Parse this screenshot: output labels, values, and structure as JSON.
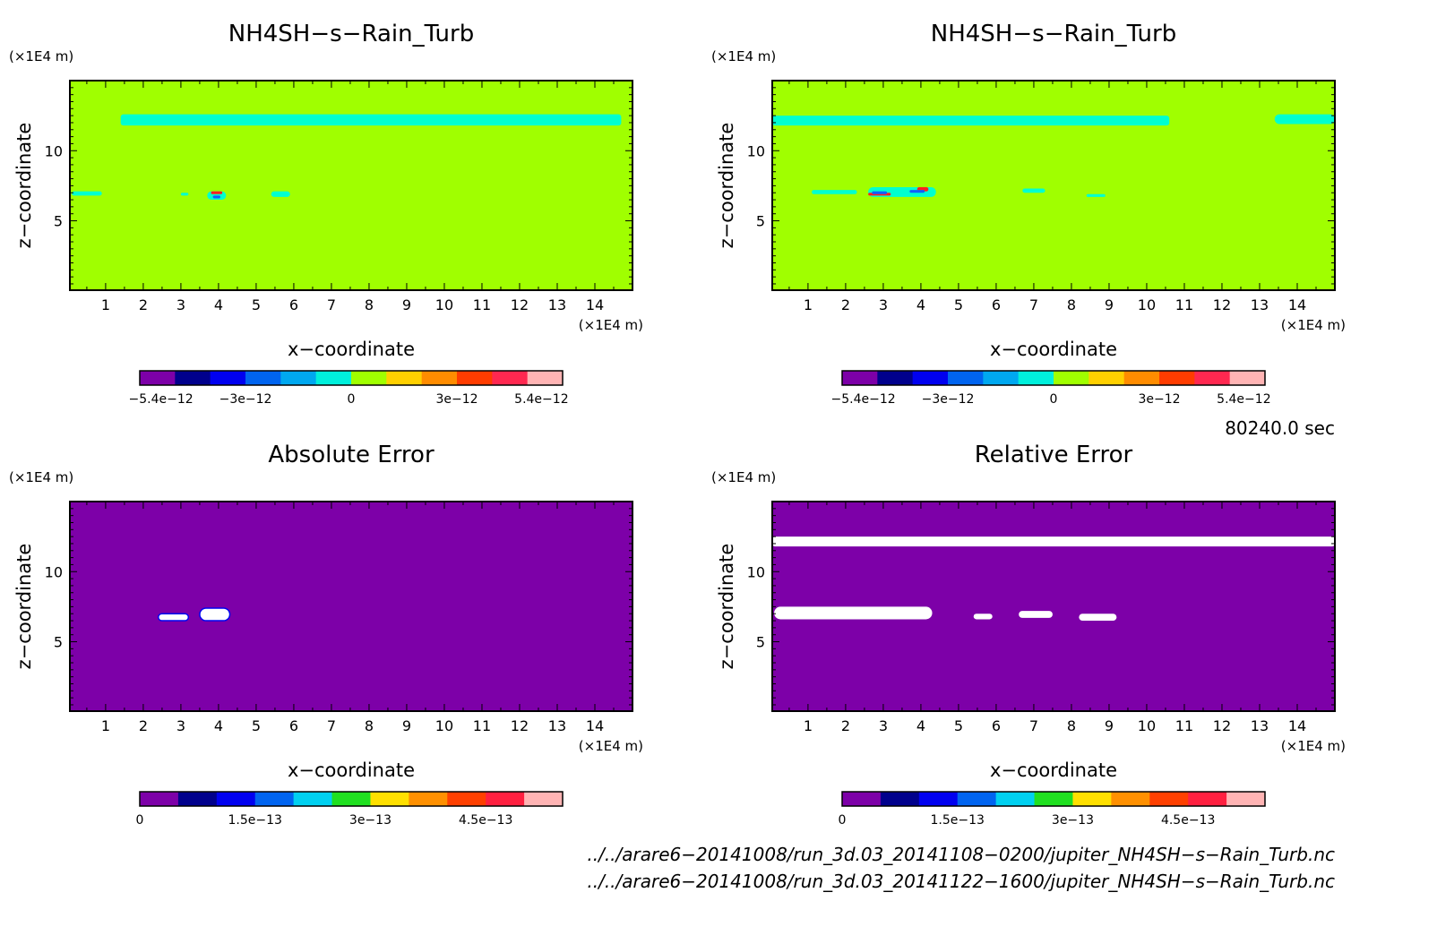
{
  "chart_data": [
    {
      "type": "heatmap",
      "title": "NH4SH−s−Rain_Turb",
      "xlabel": "x−coordinate",
      "ylabel": "z−coordinate",
      "x_unit": "(×1E4 m)",
      "y_unit": "(×1E4 m)",
      "xlim": [
        0.05,
        15.0
      ],
      "ylim": [
        0.05,
        15.0
      ],
      "x_ticks": [
        "1",
        "2",
        "3",
        "4",
        "5",
        "6",
        "7",
        "8",
        "9",
        "10",
        "11",
        "12",
        "13",
        "14"
      ],
      "y_ticks": [
        "5",
        "10"
      ],
      "background_color": "#a0ff00",
      "features": [
        {
          "color": "#00ffd0",
          "x": [
            1.4,
            14.7
          ],
          "z": [
            11.8,
            12.6
          ],
          "desc": "band"
        },
        {
          "color": "#00ffd0",
          "x": [
            0.1,
            0.9
          ],
          "z": [
            6.8,
            7.1
          ]
        },
        {
          "color": "#00ffd0",
          "x": [
            3.0,
            3.2
          ],
          "z": [
            6.8,
            7.0
          ]
        },
        {
          "color": "#00ffd0",
          "x": [
            5.4,
            5.9
          ],
          "z": [
            6.7,
            7.1
          ]
        },
        {
          "color": "#00ffd0",
          "x": [
            3.7,
            4.2
          ],
          "z": [
            6.5,
            7.1
          ]
        },
        {
          "color": "#ff2020",
          "x": [
            3.8,
            4.1
          ],
          "z": [
            6.9,
            7.1
          ]
        },
        {
          "color": "#1060ff",
          "x": [
            3.85,
            4.05
          ],
          "z": [
            6.6,
            6.8
          ]
        }
      ],
      "colorbar": {
        "colors": [
          "#7d00a8",
          "#00008c",
          "#0000f0",
          "#0064f0",
          "#00a8f0",
          "#00f0dc",
          "#a0ff00",
          "#ffd000",
          "#ff8c00",
          "#ff3c00",
          "#ff2850",
          "#ffb4b4"
        ],
        "tick_labels": [
          "−5.4e−12",
          "−3e−12",
          "0",
          "3e−12",
          "5.4e−12"
        ],
        "tick_values": [
          -5.4e-12,
          -3e-12,
          0,
          3e-12,
          5.4e-12
        ],
        "range": [
          -6e-12,
          6e-12
        ]
      }
    },
    {
      "type": "heatmap",
      "title": "NH4SH−s−Rain_Turb",
      "xlabel": "x−coordinate",
      "ylabel": "z−coordinate",
      "x_unit": "(×1E4 m)",
      "y_unit": "(×1E4 m)",
      "xlim": [
        0.05,
        15.0
      ],
      "ylim": [
        0.05,
        15.0
      ],
      "x_ticks": [
        "1",
        "2",
        "3",
        "4",
        "5",
        "6",
        "7",
        "8",
        "9",
        "10",
        "11",
        "12",
        "13",
        "14"
      ],
      "y_ticks": [
        "5",
        "10"
      ],
      "background_color": "#a0ff00",
      "features": [
        {
          "color": "#00ffd0",
          "x": [
            0.05,
            10.6
          ],
          "z": [
            11.8,
            12.5
          ]
        },
        {
          "color": "#00ffd0",
          "x": [
            13.4,
            15.0
          ],
          "z": [
            11.9,
            12.6
          ]
        },
        {
          "color": "#00ffd0",
          "x": [
            1.1,
            2.3
          ],
          "z": [
            6.9,
            7.2
          ]
        },
        {
          "color": "#00ffd0",
          "x": [
            2.6,
            4.4
          ],
          "z": [
            6.7,
            7.4
          ]
        },
        {
          "color": "#00ffd0",
          "x": [
            6.7,
            7.3
          ],
          "z": [
            7.0,
            7.3
          ]
        },
        {
          "color": "#00ffd0",
          "x": [
            8.4,
            8.9
          ],
          "z": [
            6.7,
            6.9
          ]
        },
        {
          "color": "#ff2020",
          "x": [
            2.6,
            3.2
          ],
          "z": [
            6.8,
            7.0
          ]
        },
        {
          "color": "#ff2020",
          "x": [
            3.9,
            4.2
          ],
          "z": [
            7.1,
            7.4
          ]
        },
        {
          "color": "#1060ff",
          "x": [
            2.7,
            3.1
          ],
          "z": [
            6.9,
            7.1
          ]
        },
        {
          "color": "#1060ff",
          "x": [
            3.7,
            4.1
          ],
          "z": [
            7.0,
            7.2
          ]
        }
      ],
      "colorbar": {
        "colors": [
          "#7d00a8",
          "#00008c",
          "#0000f0",
          "#0064f0",
          "#00a8f0",
          "#00f0dc",
          "#a0ff00",
          "#ffd000",
          "#ff8c00",
          "#ff3c00",
          "#ff2850",
          "#ffb4b4"
        ],
        "tick_labels": [
          "−5.4e−12",
          "−3e−12",
          "0",
          "3e−12",
          "5.4e−12"
        ],
        "tick_values": [
          -5.4e-12,
          -3e-12,
          0,
          3e-12,
          5.4e-12
        ],
        "range": [
          -6e-12,
          6e-12
        ]
      }
    },
    {
      "type": "heatmap",
      "title": "Absolute Error",
      "xlabel": "x−coordinate",
      "ylabel": "z−coordinate",
      "x_unit": "(×1E4 m)",
      "y_unit": "(×1E4 m)",
      "xlim": [
        0.05,
        15.0
      ],
      "ylim": [
        0.05,
        15.0
      ],
      "x_ticks": [
        "1",
        "2",
        "3",
        "4",
        "5",
        "6",
        "7",
        "8",
        "9",
        "10",
        "11",
        "12",
        "13",
        "14"
      ],
      "y_ticks": [
        "5",
        "10"
      ],
      "background_color": "#7d00a8",
      "features": [
        {
          "color": "#ffffff",
          "x": [
            2.4,
            3.2
          ],
          "z": [
            6.5,
            7.0
          ],
          "edge": "#0000f0"
        },
        {
          "color": "#ffffff",
          "x": [
            3.5,
            4.3
          ],
          "z": [
            6.5,
            7.4
          ],
          "edge": "#0000f0"
        }
      ],
      "colorbar": {
        "colors": [
          "#7d00a8",
          "#00008c",
          "#0000f0",
          "#0064f0",
          "#00d0f0",
          "#20e020",
          "#ffe000",
          "#ff9000",
          "#ff4000",
          "#ff2040",
          "#ffb4b4"
        ],
        "tick_labels": [
          "0",
          "1.5e−13",
          "3e−13",
          "4.5e−13"
        ],
        "tick_values": [
          0,
          1.5e-13,
          3e-13,
          4.5e-13
        ],
        "range": [
          0,
          5.5e-13
        ]
      }
    },
    {
      "type": "heatmap",
      "title": "Relative Error",
      "xlabel": "x−coordinate",
      "ylabel": "z−coordinate",
      "x_unit": "(×1E4 m)",
      "y_unit": "(×1E4 m)",
      "xlim": [
        0.05,
        15.0
      ],
      "ylim": [
        0.05,
        15.0
      ],
      "x_ticks": [
        "1",
        "2",
        "3",
        "4",
        "5",
        "6",
        "7",
        "8",
        "9",
        "10",
        "11",
        "12",
        "13",
        "14"
      ],
      "y_ticks": [
        "5",
        "10"
      ],
      "background_color": "#7d00a8",
      "features": [
        {
          "color": "#ffffff",
          "x": [
            0.05,
            15.0
          ],
          "z": [
            11.8,
            12.5
          ]
        },
        {
          "color": "#ffffff",
          "x": [
            0.1,
            4.3
          ],
          "z": [
            6.6,
            7.5
          ]
        },
        {
          "color": "#ffffff",
          "x": [
            5.4,
            5.9
          ],
          "z": [
            6.6,
            7.0
          ]
        },
        {
          "color": "#ffffff",
          "x": [
            6.6,
            7.5
          ],
          "z": [
            6.7,
            7.2
          ]
        },
        {
          "color": "#ffffff",
          "x": [
            8.2,
            9.2
          ],
          "z": [
            6.5,
            7.0
          ]
        }
      ],
      "colorbar": {
        "colors": [
          "#7d00a8",
          "#00008c",
          "#0000f0",
          "#0064f0",
          "#00d0f0",
          "#20e020",
          "#ffe000",
          "#ff9000",
          "#ff4000",
          "#ff2040",
          "#ffb4b4"
        ],
        "tick_labels": [
          "0",
          "1.5e−13",
          "3e−13",
          "4.5e−13"
        ],
        "tick_values": [
          0,
          1.5e-13,
          3e-13,
          4.5e-13
        ],
        "range": [
          0,
          5.5e-13
        ]
      }
    }
  ],
  "time_label": "80240.0 sec",
  "file_paths": [
    "../../arare6−20141008/run_3d.03_20141108−0200/jupiter_NH4SH−s−Rain_Turb.nc",
    "../../arare6−20141008/run_3d.03_20141122−1600/jupiter_NH4SH−s−Rain_Turb.nc"
  ]
}
